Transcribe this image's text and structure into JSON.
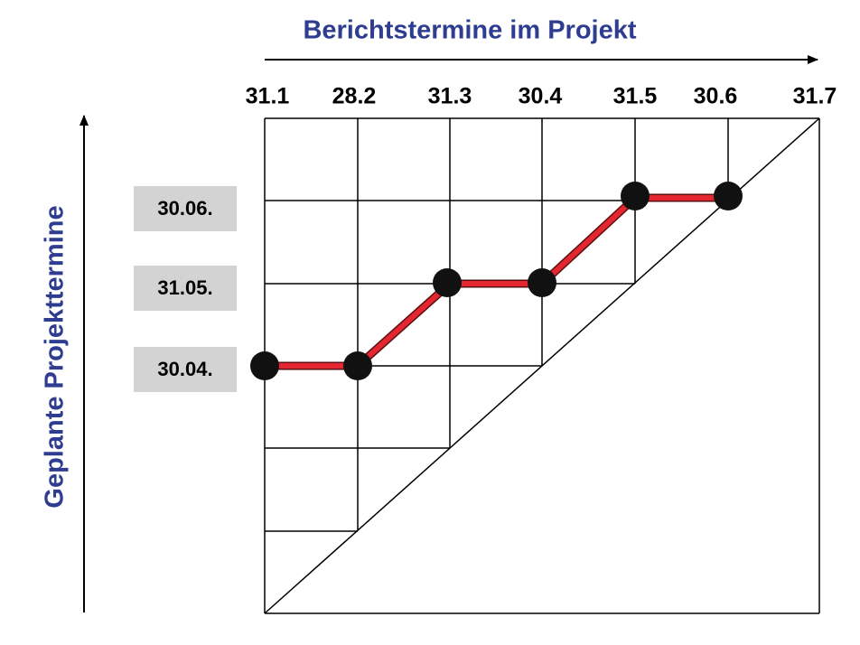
{
  "header": {
    "title": "Berichtstermine im Projekt"
  },
  "y_axis": {
    "title": "Geplante Projekttermine"
  },
  "report_dates": [
    "31.1",
    "28.2",
    "31.3",
    "30.4",
    "31.5",
    "30.6",
    "31.7"
  ],
  "planned_dates": [
    "30.06.",
    "31.05.",
    "30.04."
  ]
}
